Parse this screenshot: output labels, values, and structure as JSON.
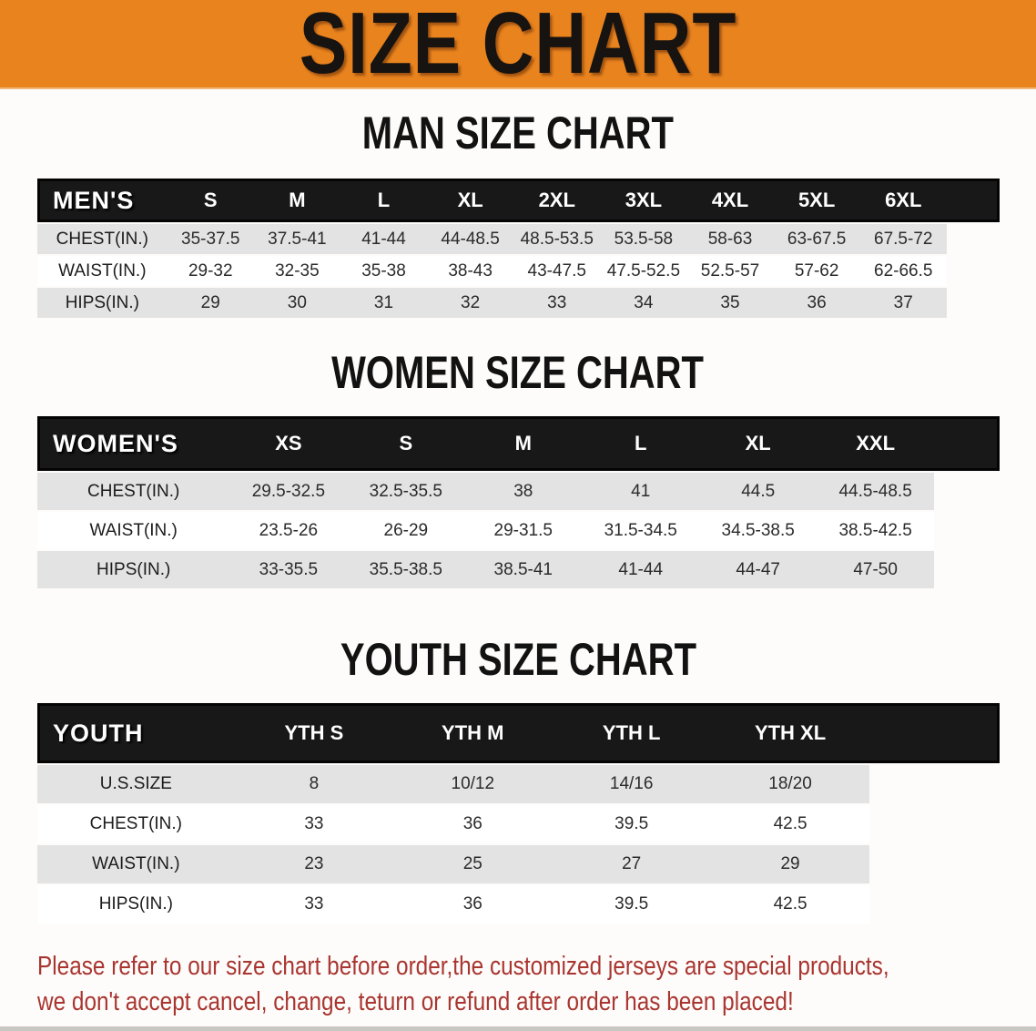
{
  "banner": {
    "title": "SIZE CHART",
    "bg_color": "#e8831e",
    "text_color": "#171310"
  },
  "sections": [
    {
      "heading": "MAN SIZE CHART",
      "table": {
        "label": "MEN'S",
        "columns": [
          "S",
          "M",
          "L",
          "XL",
          "2XL",
          "3XL",
          "4XL",
          "5XL",
          "6XL"
        ],
        "rows": [
          {
            "label": "CHEST(IN.)",
            "values": [
              "35-37.5",
              "37.5-41",
              "41-44",
              "44-48.5",
              "48.5-53.5",
              "53.5-58",
              "58-63",
              "63-67.5",
              "67.5-72"
            ]
          },
          {
            "label": "WAIST(IN.)",
            "values": [
              "29-32",
              "32-35",
              "35-38",
              "38-43",
              "43-47.5",
              "47.5-52.5",
              "52.5-57",
              "57-62",
              "62-66.5"
            ]
          },
          {
            "label": "HIPS(IN.)",
            "values": [
              "29",
              "30",
              "31",
              "32",
              "33",
              "34",
              "35",
              "36",
              "37"
            ]
          }
        ]
      }
    },
    {
      "heading": "WOMEN SIZE CHART",
      "table": {
        "label": "WOMEN'S",
        "columns": [
          "XS",
          "S",
          "M",
          "L",
          "XL",
          "XXL"
        ],
        "rows": [
          {
            "label": "CHEST(IN.)",
            "values": [
              "29.5-32.5",
              "32.5-35.5",
              "38",
              "41",
              "44.5",
              "44.5-48.5"
            ]
          },
          {
            "label": "WAIST(IN.)",
            "values": [
              "23.5-26",
              "26-29",
              "29-31.5",
              "31.5-34.5",
              "34.5-38.5",
              "38.5-42.5"
            ]
          },
          {
            "label": "HIPS(IN.)",
            "values": [
              "33-35.5",
              "35.5-38.5",
              "38.5-41",
              "41-44",
              "44-47",
              "47-50"
            ]
          }
        ]
      }
    },
    {
      "heading": "YOUTH SIZE CHART",
      "table": {
        "label": "YOUTH",
        "columns": [
          "YTH S",
          "YTH M",
          "YTH L",
          "YTH XL"
        ],
        "rows": [
          {
            "label": "U.S.SIZE",
            "values": [
              "8",
              "10/12",
              "14/16",
              "18/20"
            ]
          },
          {
            "label": "CHEST(IN.)",
            "values": [
              "33",
              "36",
              "39.5",
              "42.5"
            ]
          },
          {
            "label": "WAIST(IN.)",
            "values": [
              "23",
              "25",
              "27",
              "29"
            ]
          },
          {
            "label": "HIPS(IN.)",
            "values": [
              "33",
              "36",
              "39.5",
              "42.5"
            ]
          }
        ]
      }
    }
  ],
  "footer": {
    "lines": [
      "Please refer to our size chart before order,the customized jerseys are special products,",
      "we don't accept cancel, change, teturn or refund after order has been placed!"
    ],
    "text_color": "#a93530"
  },
  "style_colors": {
    "header_bar_black": "#181818",
    "row_stripe_gray": "#e3e3e3",
    "banner_orange": "#e8831e",
    "footer_red": "#a93530"
  }
}
